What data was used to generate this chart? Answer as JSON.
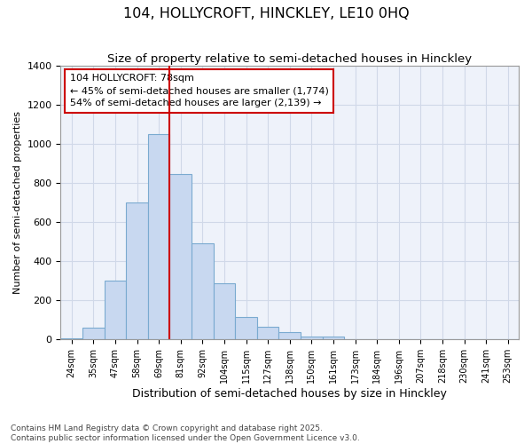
{
  "title1": "104, HOLLYCROFT, HINCKLEY, LE10 0HQ",
  "title2": "Size of property relative to semi-detached houses in Hinckley",
  "xlabel": "Distribution of semi-detached houses by size in Hinckley",
  "ylabel": "Number of semi-detached properties",
  "footnote": "Contains HM Land Registry data © Crown copyright and database right 2025.\nContains public sector information licensed under the Open Government Licence v3.0.",
  "categories": [
    "24sqm",
    "35sqm",
    "47sqm",
    "58sqm",
    "69sqm",
    "81sqm",
    "92sqm",
    "104sqm",
    "115sqm",
    "127sqm",
    "138sqm",
    "150sqm",
    "161sqm",
    "173sqm",
    "184sqm",
    "196sqm",
    "207sqm",
    "218sqm",
    "230sqm",
    "241sqm",
    "253sqm"
  ],
  "values": [
    5,
    60,
    300,
    700,
    1050,
    845,
    490,
    290,
    115,
    65,
    40,
    15,
    15,
    0,
    0,
    0,
    0,
    0,
    0,
    0,
    0
  ],
  "bar_color": "#c8d8f0",
  "bar_edge_color": "#7aaad0",
  "grid_color": "#d0d8e8",
  "bg_color": "#ffffff",
  "plot_bg_color": "#eef2fa",
  "vline_color": "#cc0000",
  "vline_x_index": 5,
  "annotation_text": "104 HOLLYCROFT: 78sqm\n← 45% of semi-detached houses are smaller (1,774)\n54% of semi-detached houses are larger (2,139) →",
  "annotation_box_color": "white",
  "annotation_box_edge_color": "#cc0000",
  "ylim": [
    0,
    1400
  ],
  "yticks": [
    0,
    200,
    400,
    600,
    800,
    1000,
    1200,
    1400
  ]
}
